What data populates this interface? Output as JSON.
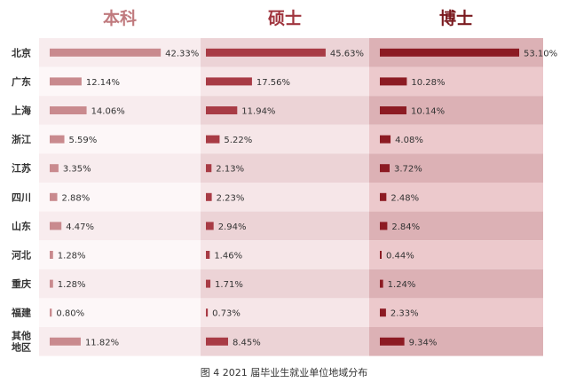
{
  "chart_data": {
    "type": "bar",
    "orientation": "horizontal",
    "layout": "three side-by-side panels",
    "categories": [
      "北京",
      "广东",
      "上海",
      "浙江",
      "江苏",
      "四川",
      "山东",
      "河北",
      "重庆",
      "福建",
      "其他地区"
    ],
    "category_lines": [
      [
        "北京"
      ],
      [
        "广东"
      ],
      [
        "上海"
      ],
      [
        "浙江"
      ],
      [
        "江苏"
      ],
      [
        "四川"
      ],
      [
        "山东"
      ],
      [
        "河北"
      ],
      [
        "重庆"
      ],
      [
        "福建"
      ],
      [
        "其他",
        "地区"
      ]
    ],
    "series": [
      {
        "name": "本科",
        "values": [
          42.33,
          12.14,
          14.06,
          5.59,
          3.35,
          2.88,
          4.47,
          1.28,
          1.28,
          0.8,
          11.82
        ],
        "labels": [
          "42.33%",
          "12.14%",
          "14.06%",
          "5.59%",
          "3.35%",
          "2.88%",
          "4.47%",
          "1.28%",
          "1.28%",
          "0.80%",
          "11.82%"
        ]
      },
      {
        "name": "硕士",
        "values": [
          45.63,
          17.56,
          11.94,
          5.22,
          2.13,
          2.23,
          2.94,
          1.46,
          1.71,
          0.73,
          8.45
        ],
        "labels": [
          "45.63%",
          "17.56%",
          "11.94%",
          "5.22%",
          "2.13%",
          "2.23%",
          "2.94%",
          "1.46%",
          "1.71%",
          "0.73%",
          "8.45%"
        ]
      },
      {
        "name": "博士",
        "values": [
          53.1,
          10.28,
          10.14,
          4.08,
          3.72,
          2.48,
          2.84,
          0.44,
          1.24,
          2.33,
          9.34
        ],
        "labels": [
          "53.10%",
          "10.28%",
          "10.14%",
          "4.08%",
          "3.72%",
          "2.48%",
          "2.84%",
          "0.44%",
          "1.24%",
          "2.33%",
          "9.34%"
        ]
      }
    ],
    "caption": "图 4   2021 届毕业生就业单位地域分布",
    "colors": {
      "bars": [
        "#c98a8e",
        "#a83b45",
        "#8c1b23"
      ],
      "headers": [
        "#c07a7e",
        "#a0353e",
        "#7a1a1f"
      ],
      "bands_even": [
        "#f8ecee",
        "#ecd3d6",
        "#dcb1b5"
      ],
      "bands_odd": [
        "#fdf7f8",
        "#f6e6e8",
        "#ecc9cc"
      ],
      "label_text": "#333333"
    },
    "grid": false,
    "legend": "none"
  }
}
